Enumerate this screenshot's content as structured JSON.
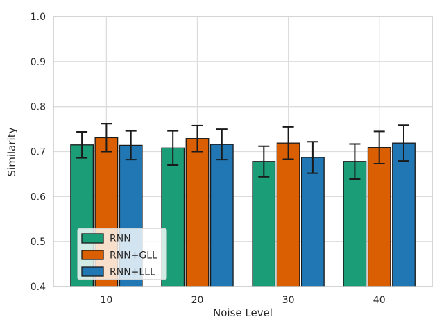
{
  "figure": {
    "background": "#ffffff",
    "text_color": "#262626",
    "grid_color": "#dcdcdc",
    "spine_color": "#cccccc",
    "bar_edge_color": "#1a1a1a",
    "errorbar_color": "#1a1a1a",
    "legend_border_color": "#cccccc"
  },
  "chart_data": {
    "type": "bar",
    "title": "",
    "xlabel": "Noise Level",
    "ylabel": "Similarity",
    "categories": [
      "10",
      "20",
      "30",
      "40"
    ],
    "series": [
      {
        "name": "RNN",
        "color": "#1b9e77",
        "values": [
          0.715,
          0.708,
          0.678,
          0.678
        ],
        "errors": [
          0.029,
          0.038,
          0.034,
          0.039
        ]
      },
      {
        "name": "RNN+GLL",
        "color": "#d95f02",
        "values": [
          0.731,
          0.729,
          0.719,
          0.709
        ],
        "errors": [
          0.031,
          0.029,
          0.036,
          0.036
        ]
      },
      {
        "name": "RNN+LLL",
        "color": "#2077b4",
        "values": [
          0.714,
          0.716,
          0.687,
          0.719
        ],
        "errors": [
          0.032,
          0.034,
          0.035,
          0.04
        ]
      }
    ],
    "ylim": [
      0.4,
      1.0
    ],
    "yticks": [
      "0.4",
      "0.5",
      "0.6",
      "0.7",
      "0.8",
      "0.9",
      "1.0"
    ],
    "grid": true,
    "error_bars": true,
    "legend_position": "lower left"
  }
}
